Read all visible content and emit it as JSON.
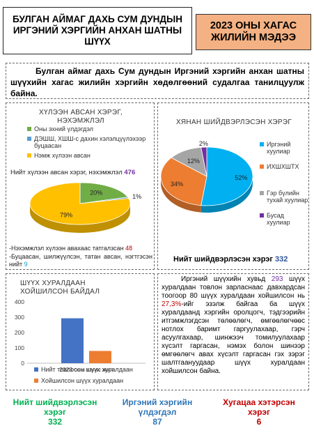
{
  "header": {
    "title": "БУЛГАН АЙМАГ ДАХЬ СУМ ДУНДЫН ИРГЭНИЙ ХЭРГИЙН АНХАН ШАТНЫ ШҮҮХ",
    "report_title": "2023 ОНЫ ХАГАС ЖИЛИЙН МЭДЭЭ"
  },
  "intro": "Булган аймаг дахь Сум дундын Иргэний хэргийн анхан шатны шүүхийн хагас жилийн хэргийн хөдөлгөөний судалгаа танилцуулж байна.",
  "cases_panel": {
    "total_text": "Нийт хүлээн авсан хэрэг, нэхэмжлэл",
    "total_value": "476",
    "note1_text": "-Нэхэмжлэл хүлээн авахаас татгалзсан",
    "note1_value": "48",
    "note2_text": "-Буцаасан, шилжүүлсэн, татан авсан, нэгтгэсэн нийт",
    "note2_value": "9"
  },
  "resolution_panel": {
    "total_text": "Нийт шийдвэрлэсэн хэрэг",
    "total_value": "332"
  },
  "text_panel": {
    "p1": "Иргэний шүүхийн хувьд",
    "v1": "293",
    "p2": "шүүх хуралдаан товлон зарласнаас давхардсан тоогоор 80 шүүх хуралдаан хойшилсон нь",
    "v2": "27,3%",
    "p3": "-ийг эзэлж байгаа ба шүүх хуралдаанд хэргийн оролцогч, тэдгээрийн итгэмжлэгдсэн төлөөлөгч, өмгөөлөгчөөс нотлох баримт гаргуулахаар, гэрч асуулгахаар, шинжээч томилуулахаар хүсэлт гаргасан, нэмэх болон шинээр өмгөөлөгч авах хүсэлт гаргасан гэх зэрэг шалтгаануудаар шүүх хуралдаан хойшилсон байна."
  },
  "stats": [
    {
      "label": "Нийт шийдвэрлэсэн хэрэг",
      "value": "332",
      "color": "#00b050"
    },
    {
      "label": "Иргэний хэргийн үлдэгдэл",
      "value": "87",
      "color": "#2e75b6"
    },
    {
      "label": "Хугацаа хэтэрсэн хэрэг",
      "value": "6",
      "color": "#c00000"
    }
  ],
  "chart_data": [
    {
      "type": "pie",
      "title": "ХҮЛЭЭН АВСАН ХЭРЭГ, НЭХЭМЖЛЭЛ",
      "categories": [
        "Оны эхний үлдэгдэл",
        "ДЭШШ, ХШШ-с дахин хэлэлцүүлэхээр буцаасан",
        "Нэмж хүлээн авсан"
      ],
      "values": [
        20,
        1,
        79
      ],
      "value_labels": [
        "20%",
        "1%",
        "79%"
      ],
      "colors": [
        "#70ad47",
        "#5b9bd5",
        "#ffc000"
      ],
      "legend_position": "top"
    },
    {
      "type": "pie",
      "title": "ХЯНАН ШИЙДВЭРЛЭСЭН ХЭРЭГ",
      "categories": [
        "Иргэний хуулиар",
        "ИХШХШТХ",
        "Гэр бүлийн тухай хуулиар",
        "Бусад хуулиар"
      ],
      "values": [
        52,
        34,
        12,
        2
      ],
      "value_labels": [
        "52%",
        "34%",
        "12%",
        "2%"
      ],
      "colors": [
        "#00b0f0",
        "#ed7d31",
        "#a5a5a5",
        "#7030a0"
      ],
      "legend_position": "right"
    },
    {
      "type": "bar",
      "title": "ШҮҮХ ХУРАЛДААН ХОЙШИЛСОН БАЙДАЛ",
      "categories": [
        "2023 оны хагас жил"
      ],
      "series": [
        {
          "name": "Нийт товлосон шүүх хуралдаан",
          "values": [
            293
          ],
          "color": "#4472c4"
        },
        {
          "name": "Хойшилсон шүүх хуралдаан",
          "values": [
            80
          ],
          "color": "#ed7d31"
        }
      ],
      "ylim": [
        0,
        400
      ],
      "yticks": [
        0,
        100,
        200,
        300,
        400
      ],
      "grid": false,
      "legend_position": "bottom"
    }
  ]
}
